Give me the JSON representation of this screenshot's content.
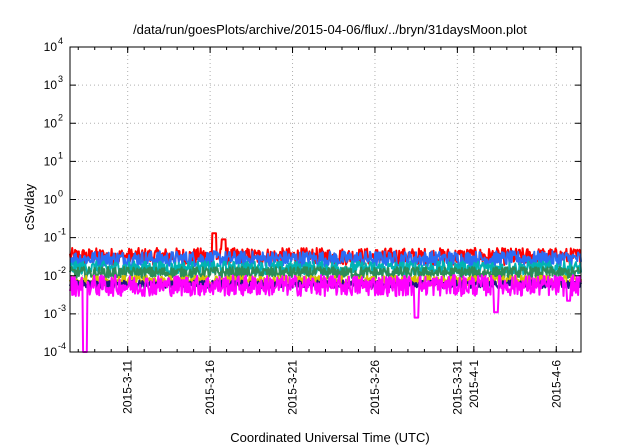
{
  "chart_data": {
    "type": "line",
    "title": "/data/run/goesPlots/archive/2015-04-06/flux/../bryn/31daysMoon.plot",
    "xlabel": "Coordinated Universal Time (UTC)",
    "ylabel": "cSv/day",
    "y_scale": "log",
    "ylim": [
      0.0001,
      10000
    ],
    "xlim": [
      "2015-03-07 12:00",
      "2015-04-07 12:00"
    ],
    "grid": true,
    "y_ticks": [
      {
        "base": "10",
        "exp": "-4",
        "value": 0.0001
      },
      {
        "base": "10",
        "exp": "-3",
        "value": 0.001
      },
      {
        "base": "10",
        "exp": "-2",
        "value": 0.01
      },
      {
        "base": "10",
        "exp": "-1",
        "value": 0.1
      },
      {
        "base": "10",
        "exp": "0",
        "value": 1
      },
      {
        "base": "10",
        "exp": "1",
        "value": 10
      },
      {
        "base": "10",
        "exp": "2",
        "value": 100
      },
      {
        "base": "10",
        "exp": "3",
        "value": 1000
      },
      {
        "base": "10",
        "exp": "4",
        "value": 10000
      }
    ],
    "x_ticks": [
      "2015-3-11",
      "2015-3-16",
      "2015-3-21",
      "2015-3-26",
      "2015-3-31",
      "2015-4-1",
      "2015-4-6"
    ],
    "x_tick_dates": [
      "2015-03-11",
      "2015-03-16",
      "2015-03-21",
      "2015-03-26",
      "2015-03-31",
      "2015-04-01",
      "2015-04-06"
    ],
    "series": [
      {
        "color": "#ff0000",
        "level": 0.032,
        "spread": 0.45,
        "peaks": [
          {
            "x": "2015-03-16 06:00",
            "y": 0.13
          },
          {
            "x": "2015-03-16 20:00",
            "y": 0.09
          }
        ]
      },
      {
        "color": "#2a6df4",
        "level": 0.028,
        "spread": 0.4
      },
      {
        "color": "#00b3b3",
        "level": 0.016,
        "spread": 0.35
      },
      {
        "color": "#2e8b57",
        "level": 0.012,
        "spread": 0.3
      },
      {
        "color": "#d4c200",
        "level": 0.0075,
        "spread": 0.25
      },
      {
        "color": "#1a1a80",
        "level": 0.006,
        "spread": 0.2
      },
      {
        "color": "#ff00ff",
        "level": 0.0055,
        "spread": 0.55,
        "dips": [
          {
            "x": "2015-03-08 10:00",
            "y": 8e-05
          },
          {
            "x": "2015-03-28 12:00",
            "y": 0.0008
          },
          {
            "x": "2015-04-02 08:00",
            "y": 0.0011
          },
          {
            "x": "2015-04-06 18:00",
            "y": 0.0022
          }
        ]
      }
    ]
  }
}
